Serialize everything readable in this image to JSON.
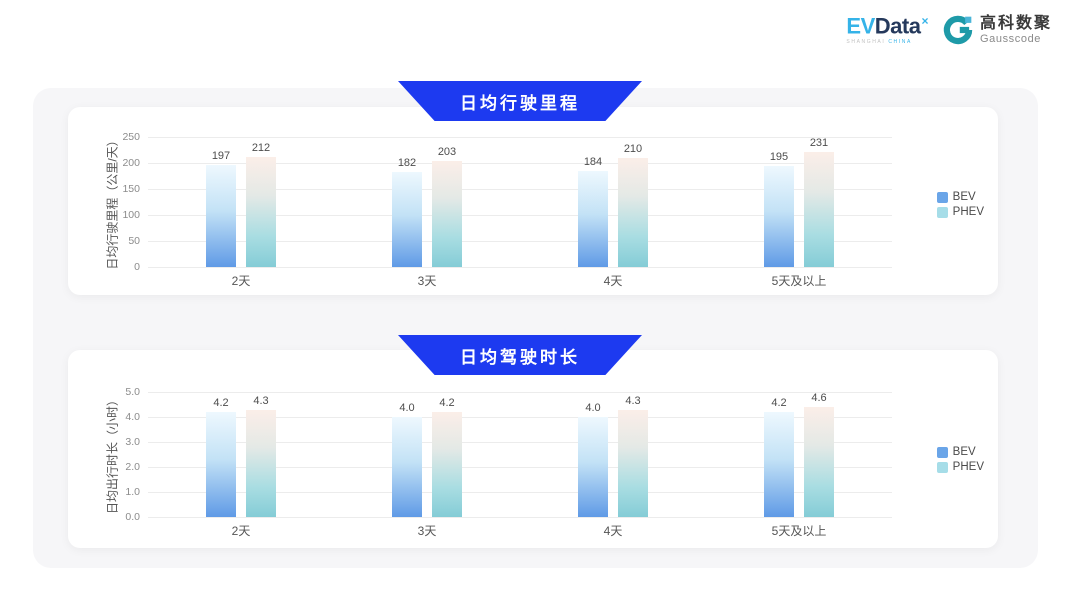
{
  "header": {
    "evdata_logo": {
      "ev": "EV",
      "data": "Data",
      "sup": "×",
      "tagline_left": "SHANGHAI",
      "tagline_right": "CHINA"
    },
    "gausscode_logo": {
      "cn": "高科数聚",
      "en": "Gausscode"
    }
  },
  "colors": {
    "banner_blue": "#1d3af0",
    "panel_gray": "#f6f6f8",
    "bev_bar_top": "#eef8fe",
    "bev_bar_bottom": "#5f9ae6",
    "phev_bar_top": "#fbeee8",
    "phev_bar_bottom": "#84ccd6",
    "bev_legend_swatch": "#6aa5e8",
    "phev_legend_swatch": "#a6dde8",
    "gausscode_teal": "#1e9aa8",
    "evdata_blue": "#35b3e8",
    "evdata_navy": "#25395c"
  },
  "chart_data": [
    {
      "type": "bar",
      "title": "日均行驶里程",
      "ylabel": "日均行驶里程（公里/天）",
      "xlabel": "",
      "categories": [
        "2天",
        "3天",
        "4天",
        "5天及以上"
      ],
      "series": [
        {
          "name": "BEV",
          "values": [
            197,
            182,
            184,
            195
          ],
          "labels": [
            "197",
            "182",
            "184",
            "195"
          ]
        },
        {
          "name": "PHEV",
          "values": [
            212,
            203,
            210,
            231
          ],
          "labels": [
            "212",
            "203",
            "210",
            "231"
          ]
        }
      ],
      "ylim": [
        0,
        250
      ],
      "yticks": [
        "0",
        "50",
        "100",
        "150",
        "200",
        "250"
      ],
      "grid": true,
      "legend_position": "right"
    },
    {
      "type": "bar",
      "title": "日均驾驶时长",
      "ylabel": "日均出行时长（小时）",
      "xlabel": "",
      "categories": [
        "2天",
        "3天",
        "4天",
        "5天及以上"
      ],
      "series": [
        {
          "name": "BEV",
          "values": [
            4.2,
            4.0,
            4.0,
            4.2
          ],
          "labels": [
            "4.2",
            "4.0",
            "4.0",
            "4.2"
          ]
        },
        {
          "name": "PHEV",
          "values": [
            4.3,
            4.2,
            4.3,
            4.6
          ],
          "labels": [
            "4.3",
            "4.2",
            "4.3",
            "4.6"
          ]
        }
      ],
      "ylim": [
        0,
        5
      ],
      "yticks": [
        "0.0",
        "1.0",
        "2.0",
        "3.0",
        "4.0",
        "5.0"
      ],
      "grid": true,
      "legend_position": "right"
    }
  ]
}
